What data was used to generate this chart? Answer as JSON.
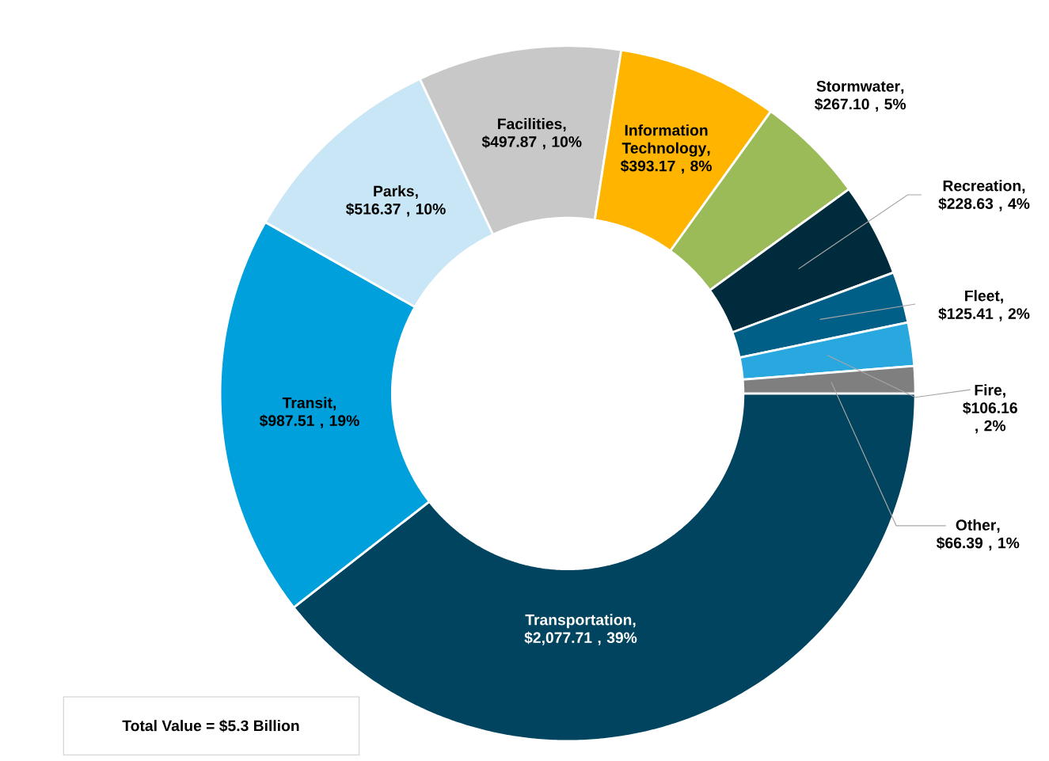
{
  "chart_data": {
    "type": "donut",
    "categories": [
      "Transportation",
      "Transit",
      "Parks",
      "Facilities",
      "Information Technology",
      "Stormwater",
      "Recreation",
      "Fleet",
      "Fire",
      "Other"
    ],
    "values": [
      2077.71,
      987.51,
      516.37,
      497.87,
      393.17,
      267.1,
      228.63,
      125.41,
      106.16,
      66.39
    ],
    "value_labels": [
      ", $2,077.71 , 39%",
      ", $987.51 , 19%",
      ", $516.37 , 10%",
      ", $497.87 , 10%",
      ", $393.17 , 8%",
      ", $267.10 , 5%",
      ", $228.63 , 4%",
      ", $125.41 , 2%",
      ", $106.16 , 2%",
      ", $66.39 , 1%"
    ],
    "colors": [
      "#00445f",
      "#00a0dc",
      "#c8e6f5",
      "#c8c8c8",
      "#ffb400",
      "#9bbb59",
      "#002b3c",
      "#005f87",
      "#29a8e0",
      "#7f7f7f"
    ],
    "annotations": [
      "Total Value = $5.3 Billion"
    ]
  }
}
